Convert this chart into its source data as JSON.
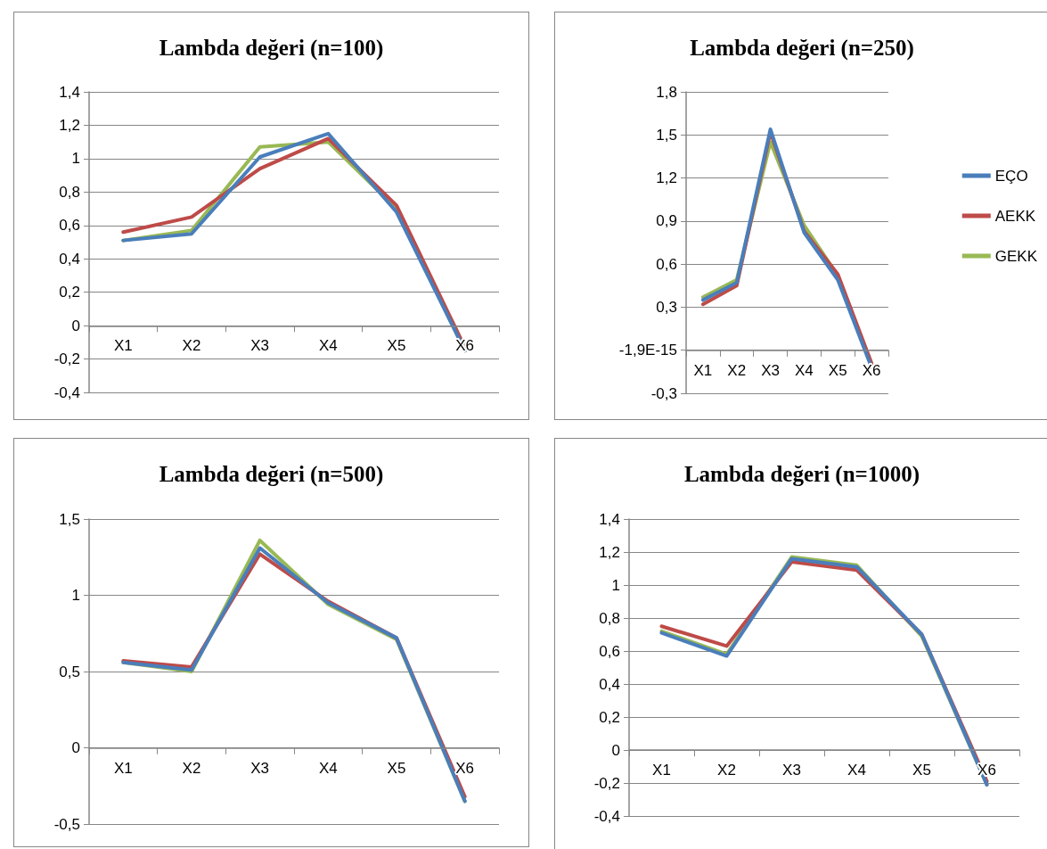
{
  "chart_data": [
    {
      "type": "line",
      "title": "Lambda değeri (n=100)",
      "categories": [
        "X1",
        "X2",
        "X3",
        "X4",
        "X5",
        "X6"
      ],
      "series": [
        {
          "color": "#4a7ebb",
          "values": [
            0.51,
            0.55,
            1.01,
            1.15,
            0.68,
            -0.15
          ]
        },
        {
          "color": "#be4b48",
          "values": [
            0.56,
            0.65,
            0.94,
            1.12,
            0.72,
            -0.13
          ]
        },
        {
          "color": "#98b954",
          "values": [
            0.51,
            0.57,
            1.07,
            1.1,
            0.7,
            -0.15
          ]
        }
      ],
      "ylim": [
        -0.4,
        1.4
      ],
      "yticks": [
        {
          "value": -0.4,
          "label": "-0,4"
        },
        {
          "value": -0.2,
          "label": "-0,2"
        },
        {
          "value": 0,
          "label": "0"
        },
        {
          "value": 0.2,
          "label": "0,2"
        },
        {
          "value": 0.4,
          "label": "0,4"
        },
        {
          "value": 0.6,
          "label": "0,6"
        },
        {
          "value": 0.8,
          "label": "0,8"
        },
        {
          "value": 1,
          "label": "1"
        },
        {
          "value": 1.2,
          "label": "1,2"
        },
        {
          "value": 1.4,
          "label": "1,4"
        }
      ],
      "grid": "y",
      "marker": "none",
      "line_style": "solid",
      "legend": false
    },
    {
      "type": "line",
      "title": "Lambda değeri (n=250)",
      "categories": [
        "X1",
        "X2",
        "X3",
        "X4",
        "X5",
        "X6"
      ],
      "series": [
        {
          "name": "EÇO",
          "color": "#4a7ebb",
          "values": [
            0.35,
            0.47,
            1.54,
            0.82,
            0.49,
            -0.12
          ]
        },
        {
          "name": "AEKK",
          "color": "#be4b48",
          "values": [
            0.32,
            0.45,
            1.52,
            0.83,
            0.53,
            -0.09
          ]
        },
        {
          "name": "GEKK",
          "color": "#98b954",
          "values": [
            0.37,
            0.49,
            1.45,
            0.87,
            0.52,
            -0.1
          ]
        }
      ],
      "ylim": [
        -0.3,
        1.8
      ],
      "yticks": [
        {
          "value": -0.3,
          "label": "-0,3"
        },
        {
          "value": 0,
          "label": "-1,9E-15"
        },
        {
          "value": 0.3,
          "label": "0,3"
        },
        {
          "value": 0.6,
          "label": "0,6"
        },
        {
          "value": 0.9,
          "label": "0,9"
        },
        {
          "value": 1.2,
          "label": "1,2"
        },
        {
          "value": 1.5,
          "label": "1,5"
        },
        {
          "value": 1.8,
          "label": "1,8"
        }
      ],
      "grid": "y",
      "marker": "none",
      "line_style": "solid",
      "legend": "right"
    },
    {
      "type": "line",
      "title": "Lambda değeri (n=500)",
      "categories": [
        "X1",
        "X2",
        "X3",
        "X4",
        "X5",
        "X6"
      ],
      "series": [
        {
          "color": "#4a7ebb",
          "values": [
            0.56,
            0.51,
            1.31,
            0.95,
            0.72,
            -0.35
          ]
        },
        {
          "color": "#be4b48",
          "values": [
            0.57,
            0.53,
            1.27,
            0.96,
            0.72,
            -0.32
          ]
        },
        {
          "color": "#98b954",
          "values": [
            0.56,
            0.5,
            1.36,
            0.94,
            0.71,
            -0.35
          ]
        }
      ],
      "ylim": [
        -0.5,
        1.5
      ],
      "yticks": [
        {
          "value": -0.5,
          "label": "-0,5"
        },
        {
          "value": 0,
          "label": "0"
        },
        {
          "value": 0.5,
          "label": "0,5"
        },
        {
          "value": 1,
          "label": "1"
        },
        {
          "value": 1.5,
          "label": "1,5"
        }
      ],
      "grid": "y",
      "marker": "none",
      "line_style": "solid",
      "legend": false
    },
    {
      "type": "line",
      "title": "Lambda değeri (n=1000)",
      "categories": [
        "X1",
        "X2",
        "X3",
        "X4",
        "X5",
        "X6"
      ],
      "series": [
        {
          "color": "#4a7ebb",
          "values": [
            0.71,
            0.57,
            1.16,
            1.11,
            0.7,
            -0.21
          ]
        },
        {
          "color": "#be4b48",
          "values": [
            0.75,
            0.63,
            1.14,
            1.09,
            0.7,
            -0.19
          ]
        },
        {
          "color": "#98b954",
          "values": [
            0.72,
            0.58,
            1.17,
            1.12,
            0.69,
            -0.21
          ]
        }
      ],
      "ylim": [
        -0.4,
        1.4
      ],
      "yticks": [
        {
          "value": -0.4,
          "label": "-0,4"
        },
        {
          "value": -0.2,
          "label": "-0,2"
        },
        {
          "value": 0,
          "label": "0"
        },
        {
          "value": 0.2,
          "label": "0,2"
        },
        {
          "value": 0.4,
          "label": "0,4"
        },
        {
          "value": 0.6,
          "label": "0,6"
        },
        {
          "value": 0.8,
          "label": "0,8"
        },
        {
          "value": 1,
          "label": "1"
        },
        {
          "value": 1.2,
          "label": "1,2"
        },
        {
          "value": 1.4,
          "label": "1,4"
        }
      ],
      "grid": "y",
      "marker": "none",
      "line_style": "solid",
      "legend": false
    }
  ]
}
